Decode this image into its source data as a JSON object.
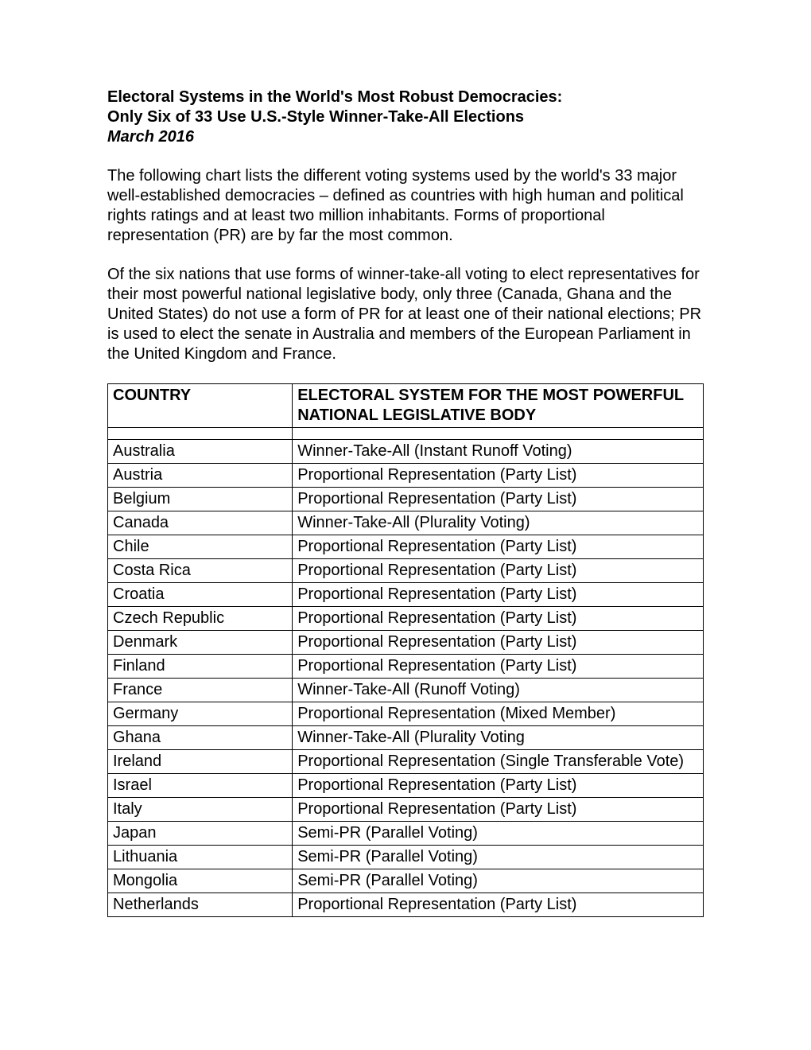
{
  "header": {
    "title_line1": "Electoral Systems in the World's Most Robust Democracies:",
    "title_line2": "Only Six of 33 Use U.S.-Style Winner-Take-All Elections",
    "date": "March 2016"
  },
  "paragraphs": {
    "p1": "The following chart lists the different voting systems used by the world's 33 major well-established democracies – defined as countries with high human and political rights ratings and at least two million inhabitants. Forms of proportional representation (PR) are by far the most common.",
    "p2": "Of the six nations that use forms of winner-take-all voting to elect representatives for their most powerful national legislative body, only three (Canada, Ghana and the United States) do not use a form of PR for at least one of their national elections; PR is used to elect the senate in Australia and members of the European Parliament in the United Kingdom and France."
  },
  "table": {
    "header_country": "COUNTRY",
    "header_system": "ELECTORAL SYSTEM FOR THE MOST POWERFUL NATIONAL LEGISLATIVE BODY",
    "rows": [
      {
        "country": "Australia",
        "system": "Winner-Take-All (Instant Runoff Voting)"
      },
      {
        "country": "Austria",
        "system": "Proportional Representation (Party List)"
      },
      {
        "country": "Belgium",
        "system": "Proportional Representation (Party List)"
      },
      {
        "country": "Canada",
        "system": "Winner-Take-All (Plurality Voting)"
      },
      {
        "country": "Chile",
        "system": "Proportional Representation (Party List)"
      },
      {
        "country": "Costa Rica",
        "system": "Proportional Representation (Party List)"
      },
      {
        "country": "Croatia",
        "system": "Proportional Representation (Party List)"
      },
      {
        "country": "Czech Republic",
        "system": "Proportional Representation (Party List)"
      },
      {
        "country": "Denmark",
        "system": "Proportional Representation (Party List)"
      },
      {
        "country": "Finland",
        "system": "Proportional Representation (Party List)"
      },
      {
        "country": "France",
        "system": "Winner-Take-All (Runoff Voting)"
      },
      {
        "country": "Germany",
        "system": "Proportional Representation (Mixed Member)"
      },
      {
        "country": "Ghana",
        "system": "Winner-Take-All (Plurality Voting"
      },
      {
        "country": "Ireland",
        "system": "Proportional Representation (Single Transferable Vote)"
      },
      {
        "country": "Israel",
        "system": "Proportional Representation (Party List)"
      },
      {
        "country": "Italy",
        "system": "Proportional Representation (Party List)"
      },
      {
        "country": "Japan",
        "system": "Semi-PR (Parallel Voting)"
      },
      {
        "country": "Lithuania",
        "system": "Semi-PR (Parallel Voting)"
      },
      {
        "country": "Mongolia",
        "system": "Semi-PR (Parallel Voting)"
      },
      {
        "country": "Netherlands",
        "system": "Proportional Representation (Party List)"
      }
    ]
  }
}
